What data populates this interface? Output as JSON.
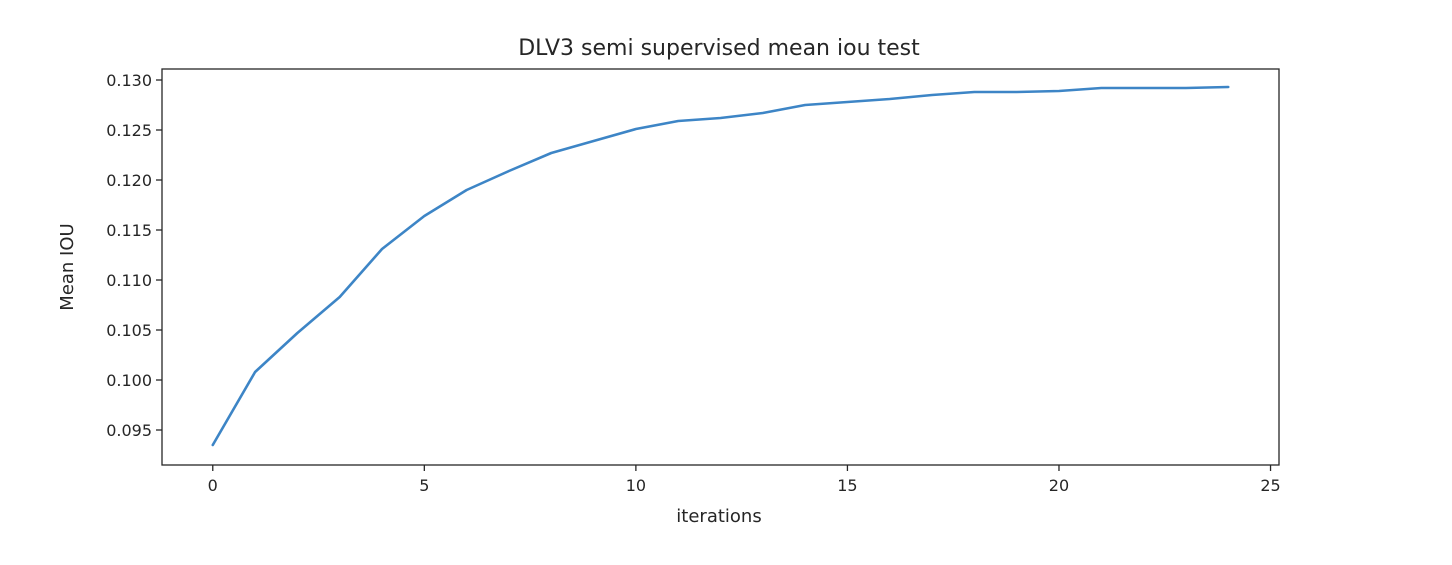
{
  "chart_data": {
    "type": "line",
    "title": "DLV3 semi supervised mean iou test",
    "xlabel": "iterations",
    "ylabel": "Mean IOU",
    "xlim": [
      -1.2,
      25.2
    ],
    "ylim": [
      0.0915,
      0.1311
    ],
    "xticks": [
      0,
      5,
      10,
      15,
      20,
      25
    ],
    "xtick_labels": [
      "0",
      "5",
      "10",
      "15",
      "20",
      "25"
    ],
    "yticks": [
      0.095,
      0.1,
      0.105,
      0.11,
      0.115,
      0.12,
      0.125,
      0.13
    ],
    "ytick_labels": [
      "0.095",
      "0.100",
      "0.105",
      "0.110",
      "0.115",
      "0.120",
      "0.125",
      "0.130"
    ],
    "grid": false,
    "series": [
      {
        "color": "#3d85c6",
        "x": [
          0,
          1,
          2,
          3,
          4,
          5,
          6,
          7,
          8,
          9,
          10,
          11,
          12,
          13,
          14,
          15,
          16,
          17,
          18,
          19,
          20,
          21,
          22,
          23,
          24
        ],
        "y": [
          0.0935,
          0.1008,
          0.1047,
          0.1083,
          0.1131,
          0.1164,
          0.119,
          0.1209,
          0.1227,
          0.1239,
          0.1251,
          0.1259,
          0.1262,
          0.1267,
          0.1275,
          0.1278,
          0.1281,
          0.1285,
          0.1288,
          0.1288,
          0.1289,
          0.1292,
          0.1292,
          0.1292,
          0.1293
        ]
      }
    ]
  }
}
